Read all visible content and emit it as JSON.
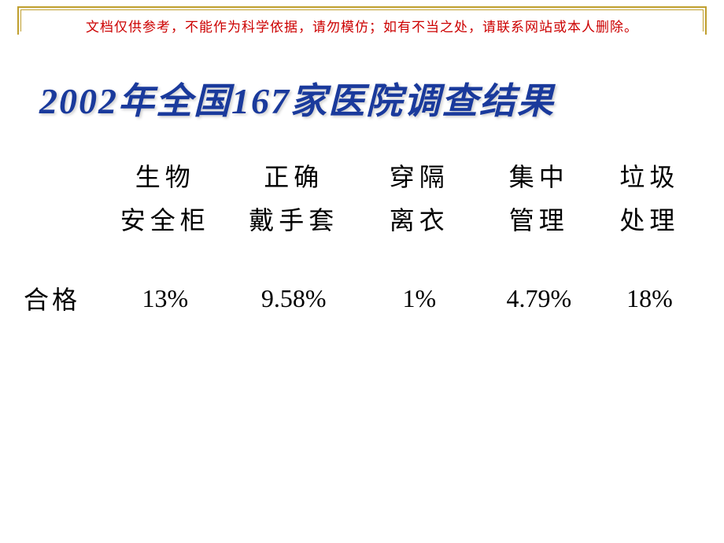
{
  "disclaimer": "文档仅供参考，不能作为科学依据，请勿模仿；如有不当之处，请联系网站或本人删除。",
  "title": "2002年全国167家医院调查结果",
  "table": {
    "row_label": "合格",
    "columns": [
      {
        "header_line1": "生物",
        "header_line2": "安全柜",
        "value": "13%"
      },
      {
        "header_line1": "正确",
        "header_line2": "戴手套",
        "value": "9.58%"
      },
      {
        "header_line1": "穿隔",
        "header_line2": "离衣",
        "value": "1%"
      },
      {
        "header_line1": "集中",
        "header_line2": "管理",
        "value": "4.79%"
      },
      {
        "header_line1": "垃圾",
        "header_line2": "处理",
        "value": "18%"
      }
    ]
  },
  "styling": {
    "background_color": "#ffffff",
    "border_color": "#c0a030",
    "disclaimer_color": "#cc0000",
    "title_color": "#1a3a9c",
    "text_color": "#000000",
    "title_fontsize": 46,
    "header_fontsize": 32,
    "data_fontsize": 32,
    "disclaimer_fontsize": 17
  }
}
